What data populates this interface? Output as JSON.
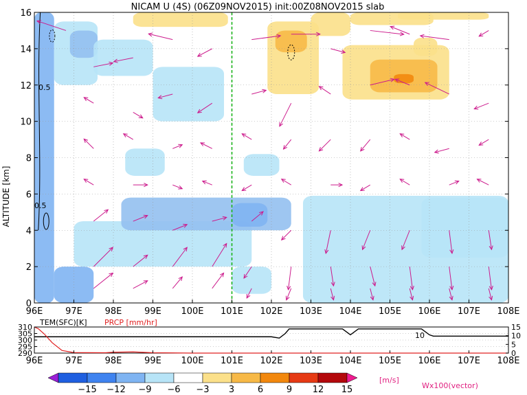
{
  "chart_data": {
    "type": "heatmap",
    "title": "NICAM U (4S) (06Z09NOV2015) init:00Z08NOV2015 slab",
    "main": {
      "xlim": [
        96,
        108
      ],
      "ylim": [
        0,
        16
      ],
      "ylabel": "ALTITUDE [km]",
      "x_ticks": [
        "96E",
        "97E",
        "98E",
        "99E",
        "100E",
        "101E",
        "102E",
        "103E",
        "104E",
        "105E",
        "106E",
        "107E",
        "108E"
      ],
      "y_ticks": [
        0,
        2,
        4,
        6,
        8,
        10,
        12,
        14,
        16
      ],
      "reference_line_lon": 101,
      "contour_labels": [
        "0.5",
        "0.5"
      ],
      "field": [
        {
          "lon": [
            96.0,
            96.5
          ],
          "alt": [
            0.0,
            16.0
          ],
          "level": "-9"
        },
        {
          "lon": [
            96.5,
            97.5
          ],
          "alt": [
            0.0,
            2.0
          ],
          "level": "-9"
        },
        {
          "lon": [
            97.0,
            101.5
          ],
          "alt": [
            2.0,
            4.5
          ],
          "level": "-3"
        },
        {
          "lon": [
            98.2,
            102.5
          ],
          "alt": [
            4.0,
            5.8
          ],
          "level": "-6"
        },
        {
          "lon": [
            101.0,
            101.9
          ],
          "alt": [
            4.2,
            5.5
          ],
          "level": "-9"
        },
        {
          "lon": [
            102.8,
            108.0
          ],
          "alt": [
            0.0,
            5.9
          ],
          "level": "-3"
        },
        {
          "lon": [
            101.0,
            102.0
          ],
          "alt": [
            0.5,
            2.0
          ],
          "level": "-3"
        },
        {
          "lon": [
            96.5,
            97.6
          ],
          "alt": [
            12.0,
            15.5
          ],
          "level": "-3"
        },
        {
          "lon": [
            96.9,
            97.6
          ],
          "alt": [
            13.5,
            15.0
          ],
          "level": "-6"
        },
        {
          "lon": [
            97.5,
            99.0
          ],
          "alt": [
            12.5,
            14.5
          ],
          "level": "-3"
        },
        {
          "lon": [
            98.3,
            99.3
          ],
          "alt": [
            7.0,
            8.5
          ],
          "level": "-3"
        },
        {
          "lon": [
            99.0,
            100.8
          ],
          "alt": [
            10.0,
            13.0
          ],
          "level": "-3"
        },
        {
          "lon": [
            101.3,
            102.2
          ],
          "alt": [
            7.0,
            8.2
          ],
          "level": "-3"
        },
        {
          "lon": [
            98.5,
            100.9
          ],
          "alt": [
            15.2,
            16.0
          ],
          "level": "3"
        },
        {
          "lon": [
            101.9,
            103.2
          ],
          "alt": [
            11.5,
            15.5
          ],
          "level": "3"
        },
        {
          "lon": [
            102.1,
            102.9
          ],
          "alt": [
            13.8,
            15.0
          ],
          "level": "6"
        },
        {
          "lon": [
            103.0,
            104.0
          ],
          "alt": [
            14.7,
            16.0
          ],
          "level": "3"
        },
        {
          "lon": [
            104.0,
            106.1
          ],
          "alt": [
            15.3,
            16.0
          ],
          "level": "3"
        },
        {
          "lon": [
            105.2,
            107.5
          ],
          "alt": [
            15.6,
            16.0
          ],
          "level": "3"
        },
        {
          "lon": [
            103.8,
            106.5
          ],
          "alt": [
            11.2,
            14.2
          ],
          "level": "3"
        },
        {
          "lon": [
            104.5,
            106.2
          ],
          "alt": [
            11.6,
            13.4
          ],
          "level": "6"
        },
        {
          "lon": [
            105.1,
            105.6
          ],
          "alt": [
            12.1,
            12.6
          ],
          "level": "9"
        },
        {
          "lon": [
            105.8,
            108.0
          ],
          "alt": [
            2.5,
            5.8
          ],
          "level": "-3"
        },
        {
          "lon": [
            105.6,
            106.2
          ],
          "alt": [
            13.6,
            14.6
          ],
          "level": "3"
        }
      ],
      "vectors": [
        {
          "lon": 96.8,
          "alt": 15.0,
          "u": -3,
          "v": 0.5
        },
        {
          "lon": 97.5,
          "alt": 13.0,
          "u": 2,
          "v": 0.2
        },
        {
          "lon": 98.5,
          "alt": 13.5,
          "u": -2,
          "v": -0.2
        },
        {
          "lon": 99.5,
          "alt": 14.5,
          "u": -2.5,
          "v": 0.3
        },
        {
          "lon": 100.5,
          "alt": 14.0,
          "u": -1.5,
          "v": -0.4
        },
        {
          "lon": 101.5,
          "alt": 14.5,
          "u": 3,
          "v": 0.2
        },
        {
          "lon": 102.5,
          "alt": 14.8,
          "u": 3,
          "v": 0.0
        },
        {
          "lon": 103.5,
          "alt": 14.0,
          "u": 1.5,
          "v": -0.2
        },
        {
          "lon": 104.5,
          "alt": 15.0,
          "u": 3.5,
          "v": -0.2
        },
        {
          "lon": 105.5,
          "alt": 14.8,
          "u": -2,
          "v": 0.4
        },
        {
          "lon": 106.5,
          "alt": 14.5,
          "u": -3,
          "v": 0.2
        },
        {
          "lon": 107.5,
          "alt": 15.0,
          "u": -1,
          "v": -0.3
        },
        {
          "lon": 97.5,
          "alt": 11.0,
          "u": -1,
          "v": 0.3
        },
        {
          "lon": 98.5,
          "alt": 10.5,
          "u": 1,
          "v": -0.3
        },
        {
          "lon": 99.5,
          "alt": 11.5,
          "u": -1.5,
          "v": -0.2
        },
        {
          "lon": 100.5,
          "alt": 11.0,
          "u": -1.5,
          "v": -0.5
        },
        {
          "lon": 101.5,
          "alt": 11.5,
          "u": 1.5,
          "v": 0.2
        },
        {
          "lon": 102.5,
          "alt": 11.0,
          "u": -1.2,
          "v": -1.2
        },
        {
          "lon": 103.5,
          "alt": 11.5,
          "u": -1.2,
          "v": 0.4
        },
        {
          "lon": 104.5,
          "alt": 12.0,
          "u": 2.5,
          "v": 0.3
        },
        {
          "lon": 105.5,
          "alt": 12.0,
          "u": -1.5,
          "v": 0.3
        },
        {
          "lon": 106.5,
          "alt": 11.5,
          "u": -2.5,
          "v": 0.6
        },
        {
          "lon": 107.5,
          "alt": 11.0,
          "u": -1.5,
          "v": -0.3
        },
        {
          "lon": 97.5,
          "alt": 8.5,
          "u": -1,
          "v": 0.5
        },
        {
          "lon": 98.5,
          "alt": 9.0,
          "u": -1,
          "v": 0.3
        },
        {
          "lon": 99.5,
          "alt": 8.5,
          "u": 1,
          "v": 0.2
        },
        {
          "lon": 100.5,
          "alt": 8.5,
          "u": -1.2,
          "v": 0.3
        },
        {
          "lon": 101.5,
          "alt": 9.0,
          "u": -1,
          "v": 0.3
        },
        {
          "lon": 102.5,
          "alt": 9.0,
          "u": -0.8,
          "v": -0.5
        },
        {
          "lon": 103.5,
          "alt": 9.0,
          "u": -1.2,
          "v": -0.6
        },
        {
          "lon": 104.5,
          "alt": 9.0,
          "u": -1,
          "v": -0.6
        },
        {
          "lon": 105.5,
          "alt": 9.0,
          "u": -1,
          "v": 0.3
        },
        {
          "lon": 106.5,
          "alt": 8.5,
          "u": -1.5,
          "v": -0.2
        },
        {
          "lon": 107.5,
          "alt": 9.0,
          "u": -1,
          "v": -0.3
        },
        {
          "lon": 97.5,
          "alt": 6.5,
          "u": -1,
          "v": 0.3
        },
        {
          "lon": 98.5,
          "alt": 6.5,
          "u": 1.5,
          "v": 0.0
        },
        {
          "lon": 99.5,
          "alt": 6.5,
          "u": 1,
          "v": -0.2
        },
        {
          "lon": 100.5,
          "alt": 6.5,
          "u": -1,
          "v": 0.2
        },
        {
          "lon": 101.5,
          "alt": 6.5,
          "u": -1,
          "v": -0.3
        },
        {
          "lon": 102.5,
          "alt": 6.5,
          "u": -1,
          "v": 0.3
        },
        {
          "lon": 103.5,
          "alt": 6.5,
          "u": 1.2,
          "v": 0.0
        },
        {
          "lon": 104.5,
          "alt": 6.5,
          "u": -1,
          "v": -0.3
        },
        {
          "lon": 105.5,
          "alt": 6.5,
          "u": -1,
          "v": 0.3
        },
        {
          "lon": 106.5,
          "alt": 6.5,
          "u": 1,
          "v": 0.2
        },
        {
          "lon": 107.5,
          "alt": 6.5,
          "u": -1.2,
          "v": 0.3
        },
        {
          "lon": 97.5,
          "alt": 4.5,
          "u": 1.5,
          "v": 0.6
        },
        {
          "lon": 98.5,
          "alt": 4.5,
          "u": 1.5,
          "v": 0.3
        },
        {
          "lon": 99.5,
          "alt": 4.0,
          "u": 1.5,
          "v": 0.3
        },
        {
          "lon": 100.5,
          "alt": 4.5,
          "u": 1.5,
          "v": 0.2
        },
        {
          "lon": 101.5,
          "alt": 4.5,
          "u": 1.2,
          "v": 0.5
        },
        {
          "lon": 102.5,
          "alt": 4.0,
          "u": -1,
          "v": -0.5
        },
        {
          "lon": 103.5,
          "alt": 4.0,
          "u": -0.5,
          "v": -1.2
        },
        {
          "lon": 104.5,
          "alt": 4.0,
          "u": -0.8,
          "v": -1.0
        },
        {
          "lon": 105.5,
          "alt": 4.0,
          "u": -0.8,
          "v": -1.0
        },
        {
          "lon": 106.5,
          "alt": 4.0,
          "u": 0.3,
          "v": -1.2
        },
        {
          "lon": 107.5,
          "alt": 4.0,
          "u": 0.3,
          "v": -1.0
        },
        {
          "lon": 97.5,
          "alt": 2.0,
          "u": 2,
          "v": 1.0
        },
        {
          "lon": 98.5,
          "alt": 2.0,
          "u": 1.5,
          "v": 0.6
        },
        {
          "lon": 99.5,
          "alt": 2.0,
          "u": 1.5,
          "v": 1.0
        },
        {
          "lon": 100.5,
          "alt": 2.0,
          "u": 1.5,
          "v": 1.2
        },
        {
          "lon": 101.5,
          "alt": 2.0,
          "u": -0.8,
          "v": -0.6
        },
        {
          "lon": 102.5,
          "alt": 2.0,
          "u": -0.3,
          "v": -1.2
        },
        {
          "lon": 103.5,
          "alt": 2.0,
          "u": 0.3,
          "v": -1.0
        },
        {
          "lon": 104.5,
          "alt": 2.0,
          "u": 0.5,
          "v": -1.0
        },
        {
          "lon": 105.5,
          "alt": 2.0,
          "u": 0.3,
          "v": -1.2
        },
        {
          "lon": 106.5,
          "alt": 2.0,
          "u": 0.3,
          "v": -1.2
        },
        {
          "lon": 107.5,
          "alt": 2.0,
          "u": 0.3,
          "v": -1.2
        },
        {
          "lon": 97.5,
          "alt": 0.8,
          "u": 2,
          "v": 0.8
        },
        {
          "lon": 98.5,
          "alt": 0.8,
          "u": 1.5,
          "v": 0.4
        },
        {
          "lon": 99.5,
          "alt": 0.8,
          "u": 1,
          "v": 0.6
        },
        {
          "lon": 100.5,
          "alt": 0.8,
          "u": 1.2,
          "v": 0.8
        },
        {
          "lon": 101.5,
          "alt": 0.8,
          "u": -0.5,
          "v": -0.5
        },
        {
          "lon": 102.5,
          "alt": 0.8,
          "u": -0.5,
          "v": -0.6
        },
        {
          "lon": 103.5,
          "alt": 0.8,
          "u": 0.3,
          "v": -0.6
        },
        {
          "lon": 104.5,
          "alt": 0.8,
          "u": 0.3,
          "v": -0.6
        },
        {
          "lon": 105.5,
          "alt": 0.8,
          "u": 0.3,
          "v": -0.6
        },
        {
          "lon": 106.5,
          "alt": 0.8,
          "u": 0.3,
          "v": -0.6
        },
        {
          "lon": 107.5,
          "alt": 0.8,
          "u": 0.3,
          "v": -0.6
        }
      ]
    },
    "sub": {
      "tem_label": "TEM(SFC)[K]",
      "prcp_label": "PRCP [mm/hr]",
      "tem_ticks": [
        290,
        295,
        300,
        305,
        310
      ],
      "tem_lim": [
        290,
        310
      ],
      "prcp_ticks": [
        0,
        5,
        10,
        15
      ],
      "prcp_lim": [
        0,
        15
      ],
      "contour_label": "10",
      "tem_series": [
        [
          96.0,
          302.5
        ],
        [
          99.0,
          302.5
        ],
        [
          102.0,
          302.5
        ],
        [
          102.2,
          301.5
        ],
        [
          102.35,
          305
        ],
        [
          102.45,
          308.5
        ],
        [
          103.8,
          308.5
        ],
        [
          104.0,
          304.0
        ],
        [
          104.2,
          308.5
        ],
        [
          105.8,
          308.5
        ],
        [
          106.0,
          304.0
        ],
        [
          106.1,
          303.0
        ],
        [
          108.0,
          303.0
        ]
      ],
      "prcp_series": [
        [
          96.0,
          15.0
        ],
        [
          96.1,
          14.0
        ],
        [
          96.25,
          11.0
        ],
        [
          96.45,
          6.0
        ],
        [
          96.7,
          1.5
        ],
        [
          97.0,
          0.3
        ],
        [
          97.8,
          0.2
        ],
        [
          98.0,
          0.5
        ],
        [
          98.5,
          0.7
        ],
        [
          99.0,
          0.2
        ],
        [
          100.0,
          0.0
        ],
        [
          108.0,
          0.0
        ]
      ]
    },
    "colorbar": {
      "levels": [
        -15,
        -12,
        -9,
        -6,
        -3,
        3,
        6,
        9,
        12,
        15
      ],
      "colors": [
        "#9a1fd6",
        "#1f5fe0",
        "#3f83ef",
        "#7fb4f2",
        "#b7e4f7",
        "#ffffff",
        "#fbe08a",
        "#f7b947",
        "#f2880d",
        "#e63a14",
        "#b3080b",
        "#ef1c8f"
      ],
      "unit": "[m/s]"
    },
    "vector_label": "Wx100(vector)",
    "field_colors": {
      "-9": "#7fb4f2",
      "-6": "#94c0f0",
      "-3": "#b7e4f7",
      "3": "#fbe08a",
      "6": "#f7b947",
      "9": "#f2880d"
    }
  }
}
